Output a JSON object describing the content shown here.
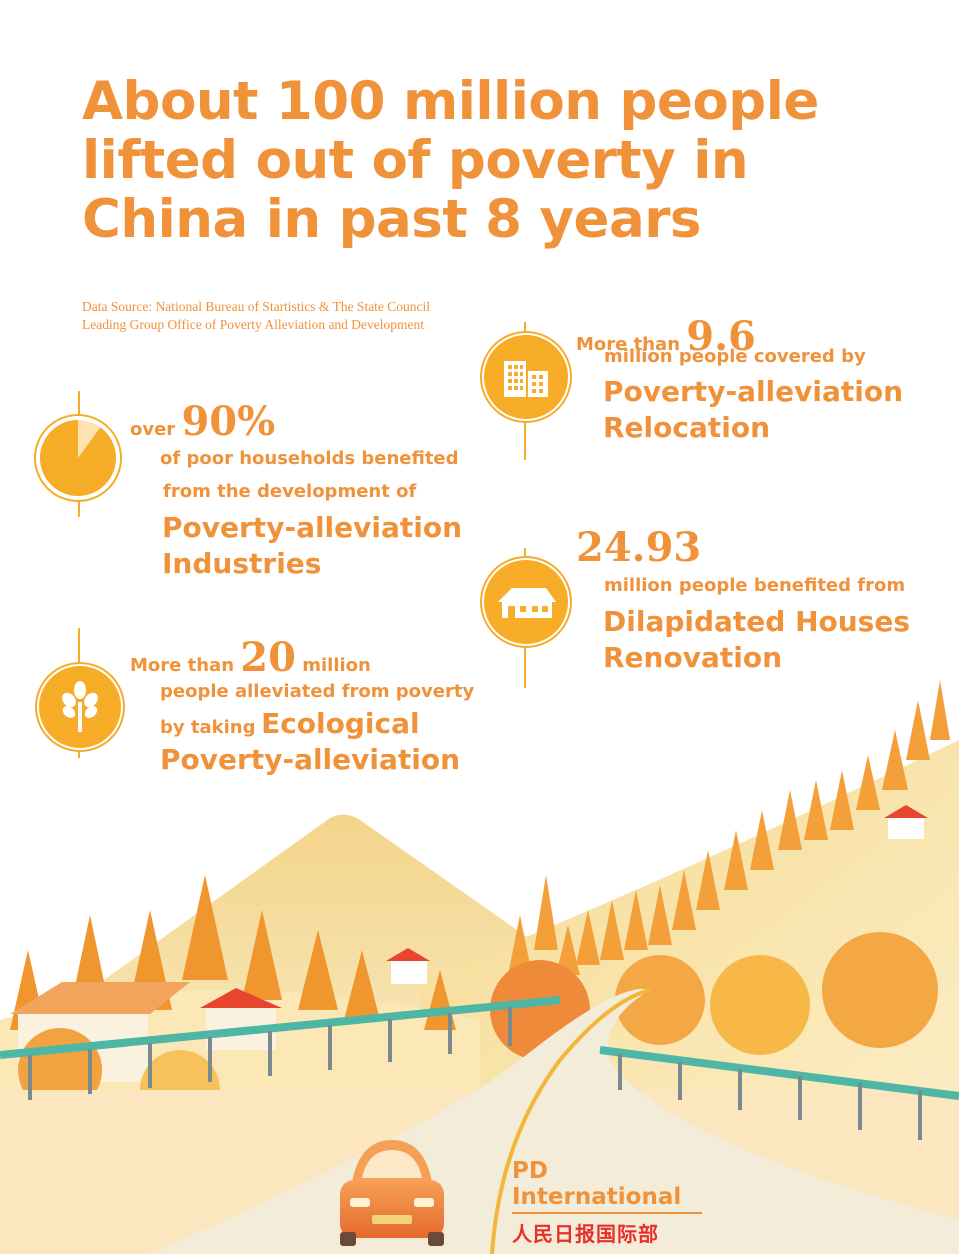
{
  "title": "About 100 million people lifted out of poverty in China in past 8 years",
  "source": {
    "line1": "Data Source: National Bureau of Startistics & The State Council",
    "line2": "Leading Group Office of Poverty Alleviation and Development"
  },
  "stats": {
    "relocation": {
      "prefix": "More than",
      "number": "9.6",
      "line1": "million people covered by",
      "heading1": "Poverty-alleviation",
      "heading2": "Relocation",
      "icon": "buildings-icon"
    },
    "industries": {
      "prefix": "over",
      "number": "90%",
      "line1": "of poor households benefited",
      "line2": "from the development of",
      "heading1": "Poverty-alleviation",
      "heading2": "Industries",
      "icon": "pie-icon",
      "percent": 90
    },
    "houses": {
      "number": "24.93",
      "line1": "million people benefited from",
      "heading1": "Dilapidated Houses",
      "heading2": "Renovation",
      "icon": "house-icon"
    },
    "ecological": {
      "prefix": "More than",
      "number": "20",
      "suffix": "million",
      "line1": "people alleviated from poverty",
      "line2_prefix": "by taking",
      "line2_heading": "Ecological",
      "heading2": "Poverty-alleviation",
      "icon": "tree-icon"
    }
  },
  "brand": {
    "name": "PD International",
    "chinese": "人民日报国际部"
  },
  "colors": {
    "accent": "#f0923a",
    "icon": "#f7ac28",
    "road": "#f3ecd8",
    "rail": "#4db6a4",
    "car": "#ee7a3a"
  }
}
